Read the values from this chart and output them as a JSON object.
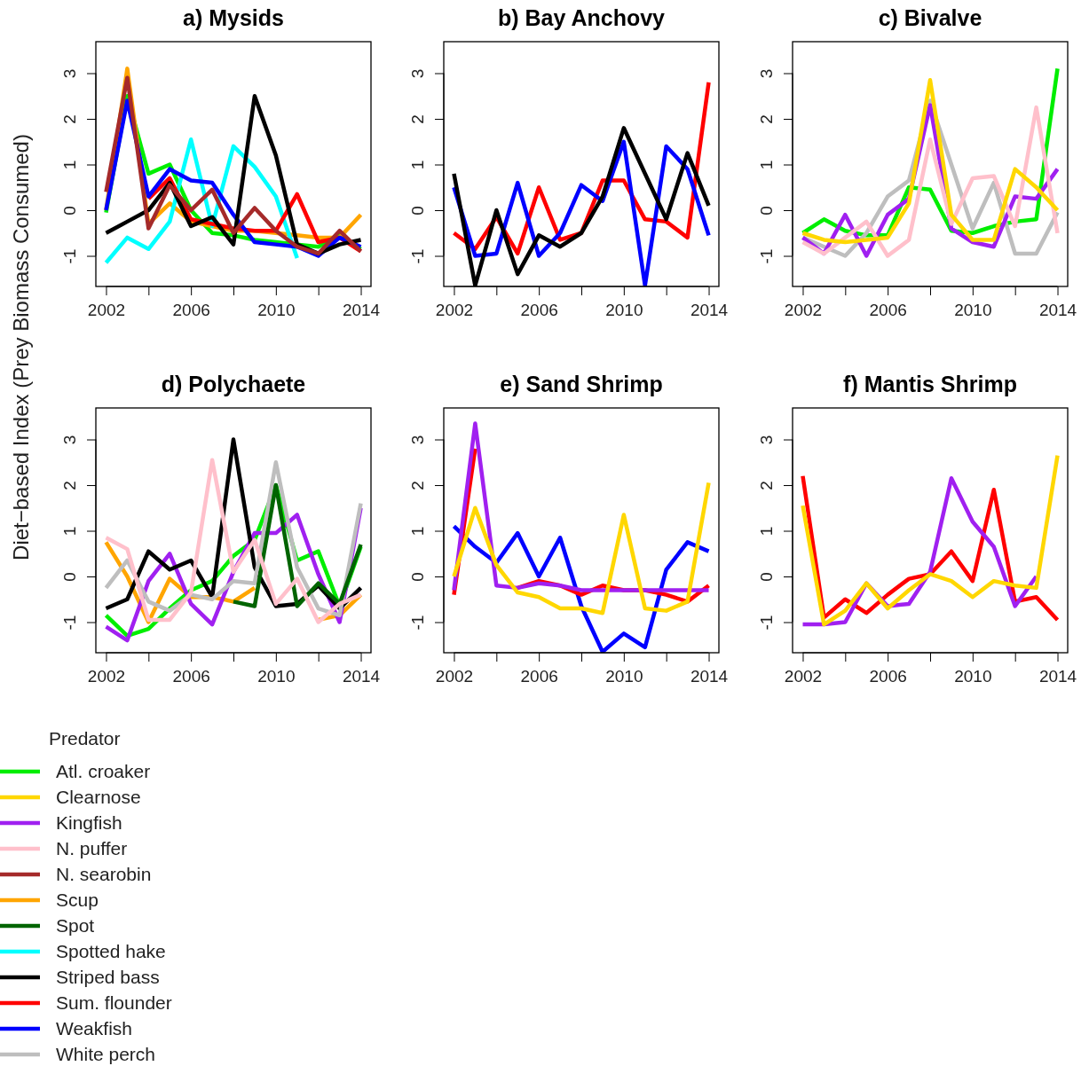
{
  "chart_data": [
    {
      "type": "line",
      "title": "a) Mysids",
      "ylabel": "Diet−based Index (Prey Biomass Consumed)",
      "legend_title": "Predator",
      "legend": "bottom left",
      "line_style": "solid",
      "grid": false,
      "xlim": [
        2001.52,
        2014.48
      ],
      "ylim": [
        -1.67,
        3.69
      ],
      "xticks": [
        2002,
        {
          "value": 2004,
          "label": null
        },
        2006,
        {
          "value": 2008,
          "label": null
        },
        2010,
        {
          "value": 2012,
          "label": null
        },
        2014
      ],
      "yticks": [
        -1,
        0,
        1,
        2,
        3
      ],
      "x": [
        2002,
        2003,
        2004,
        2005,
        2006,
        2007,
        2008,
        2009,
        2010,
        2011,
        2012,
        2013,
        2014
      ],
      "series": [
        {
          "name": "Atl. croaker",
          "color": "#00ee00",
          "values": [
            -0.05,
            2.5,
            0.8,
            1.0,
            0.0,
            -0.5,
            -0.55,
            -0.65,
            -0.7,
            -0.75,
            -0.8,
            -0.55,
            -0.85
          ]
        },
        {
          "name": "Scup",
          "color": "#ffa500",
          "values": [
            0.0,
            3.1,
            -0.3,
            0.15,
            -0.25,
            -0.35,
            -0.45,
            -0.45,
            -0.5,
            -0.55,
            -0.6,
            -0.6,
            -0.1
          ]
        },
        {
          "name": "Spotted hake",
          "color": "#00ffff",
          "values": [
            -1.15,
            -0.6,
            -0.85,
            -0.25,
            1.55,
            -0.35,
            1.4,
            0.95,
            0.3,
            -1.05,
            null,
            null,
            null
          ]
        },
        {
          "name": "Sum. flounder",
          "color": "#ff0000",
          "values": [
            null,
            null,
            0.25,
            0.7,
            -0.2,
            -0.3,
            -0.4,
            -0.45,
            -0.45,
            0.35,
            -0.7,
            -0.6,
            -0.9
          ]
        },
        {
          "name": "Weakfish",
          "color": "#0000ff",
          "values": [
            0.0,
            2.4,
            0.3,
            0.9,
            0.65,
            0.6,
            -0.1,
            -0.7,
            -0.75,
            -0.8,
            -1.0,
            -0.6,
            -0.8
          ]
        },
        {
          "name": "Striped bass",
          "color": "#000000",
          "values": [
            -0.5,
            -0.25,
            0.0,
            0.6,
            -0.35,
            -0.15,
            -0.75,
            2.5,
            1.2,
            -0.75,
            -0.95,
            -0.75,
            -0.65
          ]
        },
        {
          "name": "N. searobin",
          "color": "#a52a2a",
          "values": [
            0.4,
            2.9,
            -0.4,
            0.55,
            0.0,
            0.45,
            -0.5,
            0.05,
            -0.45,
            -0.8,
            -0.95,
            -0.45,
            -0.9
          ]
        }
      ]
    },
    {
      "type": "line",
      "title": "b) Bay Anchovy",
      "line_style": "solid",
      "grid": false,
      "xlim": [
        2001.52,
        2014.48
      ],
      "ylim": [
        -1.67,
        3.69
      ],
      "xticks": [
        2002,
        {
          "value": 2004,
          "label": null
        },
        2006,
        {
          "value": 2008,
          "label": null
        },
        2010,
        {
          "value": 2012,
          "label": null
        },
        2014
      ],
      "yticks": [
        -1,
        0,
        1,
        2,
        3
      ],
      "x": [
        2002,
        2003,
        2004,
        2005,
        2006,
        2007,
        2008,
        2009,
        2010,
        2011,
        2012,
        2013,
        2014
      ],
      "series": [
        {
          "color": "#ff0000",
          "values": [
            -0.5,
            -0.85,
            -0.15,
            -0.95,
            0.5,
            -0.65,
            -0.5,
            0.65,
            0.65,
            -0.2,
            -0.25,
            -0.6,
            2.8
          ]
        },
        {
          "color": "#0000ff",
          "values": [
            0.5,
            -1.0,
            -0.95,
            0.6,
            -1.0,
            -0.5,
            0.55,
            0.2,
            1.5,
            -1.65,
            1.4,
            0.9,
            -0.55
          ]
        },
        {
          "color": "#000000",
          "values": [
            0.8,
            -1.65,
            0.0,
            -1.4,
            -0.55,
            -0.8,
            -0.5,
            0.3,
            1.8,
            0.8,
            -0.2,
            1.25,
            0.1
          ]
        }
      ]
    },
    {
      "type": "line",
      "title": "c) Bivalve",
      "line_style": "solid",
      "grid": false,
      "xlim": [
        2001.52,
        2014.48
      ],
      "ylim": [
        -1.67,
        3.69
      ],
      "xticks": [
        2002,
        {
          "value": 2004,
          "label": null
        },
        2006,
        {
          "value": 2008,
          "label": null
        },
        2010,
        {
          "value": 2012,
          "label": null
        },
        2014
      ],
      "yticks": [
        -1,
        0,
        1,
        2,
        3
      ],
      "x": [
        2002,
        2003,
        2004,
        2005,
        2006,
        2007,
        2008,
        2009,
        2010,
        2011,
        2012,
        2013,
        2014
      ],
      "series": [
        {
          "color": "#00ee00",
          "values": [
            -0.5,
            -0.2,
            -0.45,
            -0.55,
            -0.55,
            0.5,
            0.45,
            -0.45,
            -0.5,
            -0.35,
            -0.25,
            -0.2,
            3.1
          ]
        },
        {
          "name": "White perch",
          "color": "#bebebe",
          "values": [
            -0.6,
            -0.8,
            -1.0,
            -0.5,
            0.3,
            0.65,
            2.4,
            1.0,
            -0.4,
            0.6,
            -0.95,
            -0.95,
            -0.05
          ]
        },
        {
          "name": "Kingfish",
          "color": "#a020f0",
          "values": [
            -0.6,
            -0.95,
            -0.1,
            -1.0,
            -0.1,
            0.25,
            2.3,
            -0.4,
            -0.7,
            -0.8,
            0.3,
            0.25,
            0.9
          ]
        },
        {
          "name": "N. puffer",
          "color": "#ffc0cb",
          "values": [
            -0.7,
            -0.95,
            -0.6,
            -0.25,
            -1.0,
            -0.65,
            1.55,
            -0.3,
            0.7,
            0.75,
            -0.35,
            2.25,
            -0.5
          ]
        },
        {
          "name": "Clearnose",
          "color": "#ffd700",
          "values": [
            -0.5,
            -0.65,
            -0.7,
            -0.65,
            -0.6,
            0.15,
            2.85,
            -0.1,
            -0.65,
            -0.65,
            0.9,
            0.5,
            0.0
          ]
        }
      ]
    },
    {
      "type": "line",
      "title": "d) Polychaete",
      "line_style": "solid",
      "grid": false,
      "xlim": [
        2001.52,
        2014.48
      ],
      "ylim": [
        -1.67,
        3.69
      ],
      "xticks": [
        2002,
        {
          "value": 2004,
          "label": null
        },
        2006,
        {
          "value": 2008,
          "label": null
        },
        2010,
        {
          "value": 2012,
          "label": null
        },
        2014
      ],
      "yticks": [
        -1,
        0,
        1,
        2,
        3
      ],
      "x": [
        2002,
        2003,
        2004,
        2005,
        2006,
        2007,
        2008,
        2009,
        2010,
        2011,
        2012,
        2013,
        2014
      ],
      "series": [
        {
          "color": "#ffa500",
          "values": [
            0.75,
            0.0,
            -1.0,
            -0.05,
            -0.45,
            -0.45,
            -0.55,
            -0.25,
            null,
            null,
            -0.95,
            -0.85,
            -0.4
          ]
        },
        {
          "color": "#00ee00",
          "values": [
            -0.85,
            -1.3,
            -1.15,
            -0.7,
            -0.3,
            -0.1,
            0.45,
            0.8,
            2.0,
            0.35,
            0.55,
            -0.65,
            0.65
          ]
        },
        {
          "color": "#a020f0",
          "values": [
            -1.1,
            -1.4,
            -0.1,
            0.5,
            -0.6,
            -1.05,
            0.1,
            0.95,
            0.95,
            1.35,
            0.05,
            -1.0,
            1.5
          ]
        },
        {
          "color": "#000000",
          "values": [
            -0.7,
            -0.5,
            0.55,
            0.15,
            0.35,
            -0.45,
            3.0,
            0.2,
            -0.65,
            -0.6,
            -0.2,
            -0.7,
            -0.25
          ]
        },
        {
          "color": "#bebebe",
          "values": [
            -0.25,
            0.35,
            -0.55,
            -0.75,
            -0.4,
            -0.5,
            -0.1,
            -0.15,
            2.5,
            0.2,
            -0.7,
            -0.85,
            1.6
          ]
        },
        {
          "name": "Spot",
          "color": "#006400",
          "values": [
            null,
            null,
            null,
            null,
            null,
            null,
            -0.55,
            -0.65,
            2.0,
            -0.65,
            -0.15,
            -0.6,
            0.7
          ]
        },
        {
          "color": "#ffc0cb",
          "values": [
            0.85,
            0.6,
            -0.95,
            -0.95,
            -0.35,
            2.55,
            0.1,
            0.8,
            -0.6,
            -0.05,
            -1.0,
            -0.6,
            -0.4
          ]
        }
      ]
    },
    {
      "type": "line",
      "title": "e) Sand Shrimp",
      "line_style": "solid",
      "grid": false,
      "xlim": [
        2001.52,
        2014.48
      ],
      "ylim": [
        -1.67,
        3.69
      ],
      "xticks": [
        2002,
        {
          "value": 2004,
          "label": null
        },
        2006,
        {
          "value": 2008,
          "label": null
        },
        2010,
        {
          "value": 2012,
          "label": null
        },
        2014
      ],
      "yticks": [
        -1,
        0,
        1,
        2,
        3
      ],
      "x": [
        2002,
        2003,
        2004,
        2005,
        2006,
        2007,
        2008,
        2009,
        2010,
        2011,
        2012,
        2013,
        2014
      ],
      "series": [
        {
          "color": "#0000ff",
          "values": [
            1.1,
            0.65,
            0.3,
            0.95,
            0.0,
            0.85,
            -0.65,
            -1.65,
            -1.25,
            -1.55,
            0.15,
            0.75,
            0.55
          ]
        },
        {
          "color": "#ff0000",
          "values": [
            -0.4,
            2.8,
            null,
            -0.25,
            -0.1,
            -0.2,
            -0.4,
            -0.2,
            -0.3,
            -0.3,
            -0.4,
            -0.55,
            -0.2
          ]
        },
        {
          "color": "#a020f0",
          "values": [
            -0.3,
            3.35,
            -0.2,
            -0.25,
            -0.15,
            -0.2,
            -0.3,
            -0.3,
            -0.3,
            -0.3,
            -0.3,
            -0.3,
            -0.3
          ]
        },
        {
          "color": "#ffd700",
          "values": [
            0.0,
            1.5,
            0.25,
            -0.35,
            -0.45,
            -0.7,
            -0.7,
            -0.8,
            1.35,
            -0.7,
            -0.75,
            -0.55,
            2.05
          ]
        }
      ]
    },
    {
      "type": "line",
      "title": "f) Mantis Shrimp",
      "line_style": "solid",
      "grid": false,
      "xlim": [
        2001.52,
        2014.48
      ],
      "ylim": [
        -1.67,
        3.69
      ],
      "xticks": [
        2002,
        {
          "value": 2004,
          "label": null
        },
        2006,
        {
          "value": 2008,
          "label": null
        },
        2010,
        {
          "value": 2012,
          "label": null
        },
        2014
      ],
      "yticks": [
        -1,
        0,
        1,
        2,
        3
      ],
      "x": [
        2002,
        2003,
        2004,
        2005,
        2006,
        2007,
        2008,
        2009,
        2010,
        2011,
        2012,
        2013,
        2014
      ],
      "series": [
        {
          "color": "#ff0000",
          "values": [
            2.2,
            -0.9,
            -0.5,
            -0.8,
            -0.4,
            -0.05,
            0.05,
            0.55,
            -0.1,
            1.9,
            -0.55,
            -0.45,
            -0.95
          ]
        },
        {
          "color": "#a020f0",
          "values": [
            -1.05,
            -1.05,
            -1.0,
            -0.15,
            -0.65,
            -0.6,
            0.1,
            2.15,
            1.2,
            0.65,
            -0.65,
            0.0,
            null
          ]
        },
        {
          "color": "#ffd700",
          "values": [
            1.55,
            -1.05,
            -0.75,
            -0.15,
            -0.7,
            -0.3,
            0.05,
            -0.1,
            -0.45,
            -0.1,
            -0.2,
            -0.25,
            2.65
          ]
        }
      ]
    }
  ]
}
